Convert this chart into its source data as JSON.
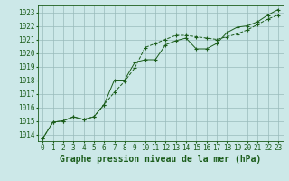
{
  "title": "Graphe pression niveau de la mer (hPa)",
  "xlabel_hours": [
    0,
    1,
    2,
    3,
    4,
    5,
    6,
    7,
    8,
    9,
    10,
    11,
    12,
    13,
    14,
    15,
    16,
    17,
    18,
    19,
    20,
    21,
    22,
    23
  ],
  "line1_values": [
    1013.7,
    1014.9,
    1015.0,
    1015.3,
    1015.1,
    1015.3,
    1016.2,
    1017.1,
    1017.9,
    1018.9,
    1020.4,
    1020.7,
    1021.0,
    1021.3,
    1021.3,
    1021.2,
    1021.1,
    1021.0,
    1021.2,
    1021.4,
    1021.7,
    1022.1,
    1022.5,
    1022.8
  ],
  "line2_values": [
    1013.7,
    1014.9,
    1015.0,
    1015.3,
    1015.1,
    1015.3,
    1016.2,
    1018.0,
    1018.0,
    1019.3,
    1019.5,
    1019.5,
    1020.6,
    1020.9,
    1021.1,
    1020.3,
    1020.3,
    1020.7,
    1021.5,
    1021.9,
    1022.0,
    1022.3,
    1022.8,
    1023.2
  ],
  "ylim_min": 1013.5,
  "ylim_max": 1023.5,
  "yticks": [
    1014,
    1015,
    1016,
    1017,
    1018,
    1019,
    1020,
    1021,
    1022,
    1023
  ],
  "bg_color": "#cce8e8",
  "grid_color": "#99bbbb",
  "line_color": "#1a5c1a",
  "title_color": "#1a5c1a",
  "tick_color": "#1a5c1a",
  "title_fontsize": 7.0,
  "tick_fontsize": 5.5
}
